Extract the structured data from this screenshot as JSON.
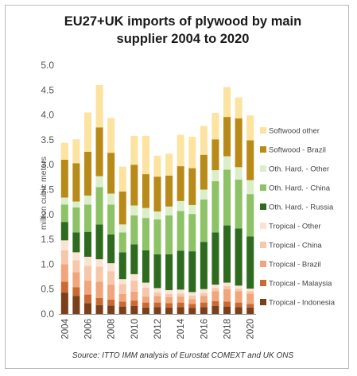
{
  "chart_data": {
    "type": "bar",
    "stacked": true,
    "title_line1": "EU27+UK imports of plywood by main",
    "title_line2": "supplier 2004 to 2020",
    "ylabel": "million cubic meters",
    "xlabel": "",
    "source": "Source: ITTO IMM analysis of Eurostat COMEXT and UK ONS",
    "ylim": [
      0,
      5.0
    ],
    "yticks": [
      "0.0",
      "0.5",
      "1.0",
      "1.5",
      "2.0",
      "2.5",
      "3.0",
      "3.5",
      "4.0",
      "4.5",
      "5.0"
    ],
    "categories": [
      "2004",
      "2005",
      "2006",
      "2007",
      "2008",
      "2009",
      "2010",
      "2011",
      "2012",
      "2013",
      "2014",
      "2015",
      "2016",
      "2017",
      "2018",
      "2019",
      "2020"
    ],
    "xtick_labels": [
      "2004",
      "",
      "2006",
      "",
      "2008",
      "",
      "2010",
      "",
      "2012",
      "",
      "2014",
      "",
      "2016",
      "",
      "2018",
      "",
      "2020"
    ],
    "legend_position": "right",
    "grid": false,
    "series": [
      {
        "name": "Tropical - Indonesia",
        "color": "#7b3f1a",
        "values": [
          0.43,
          0.36,
          0.22,
          0.18,
          0.17,
          0.15,
          0.16,
          0.13,
          0.14,
          0.13,
          0.14,
          0.12,
          0.14,
          0.16,
          0.15,
          0.14,
          0.13
        ]
      },
      {
        "name": "Tropical - Malaysia",
        "color": "#c96a35",
        "values": [
          0.22,
          0.18,
          0.17,
          0.14,
          0.12,
          0.1,
          0.11,
          0.1,
          0.09,
          0.09,
          0.09,
          0.08,
          0.09,
          0.1,
          0.1,
          0.09,
          0.07
        ]
      },
      {
        "name": "Tropical - Brazil",
        "color": "#f0a57a",
        "values": [
          0.35,
          0.3,
          0.28,
          0.33,
          0.3,
          0.15,
          0.18,
          0.12,
          0.13,
          0.12,
          0.12,
          0.1,
          0.13,
          0.2,
          0.25,
          0.23,
          0.21
        ]
      },
      {
        "name": "Tropical - China",
        "color": "#f6c7aa",
        "values": [
          0.28,
          0.24,
          0.3,
          0.3,
          0.27,
          0.2,
          0.22,
          0.18,
          0.07,
          0.06,
          0.06,
          0.07,
          0.06,
          0.06,
          0.06,
          0.05,
          0.05
        ]
      },
      {
        "name": "Tropical - Other",
        "color": "#fbe3d3",
        "values": [
          0.2,
          0.16,
          0.18,
          0.15,
          0.16,
          0.1,
          0.13,
          0.1,
          0.09,
          0.08,
          0.08,
          0.07,
          0.08,
          0.07,
          0.07,
          0.06,
          0.05
        ]
      },
      {
        "name": "Oth. Hard. - Russia",
        "color": "#2e6b1e",
        "values": [
          0.37,
          0.4,
          0.5,
          0.7,
          0.58,
          0.54,
          0.6,
          0.65,
          0.68,
          0.72,
          0.78,
          0.82,
          0.95,
          1.05,
          1.15,
          1.15,
          1.05
        ]
      },
      {
        "name": "Oth. Hard. - China",
        "color": "#8ec266",
        "values": [
          0.35,
          0.5,
          0.55,
          0.75,
          0.6,
          0.4,
          0.58,
          0.65,
          0.7,
          0.78,
          0.8,
          0.75,
          0.85,
          1.03,
          1.12,
          0.98,
          0.85
        ]
      },
      {
        "name": "Oth. Hard. - Other",
        "color": "#dbeec9",
        "values": [
          0.14,
          0.12,
          0.18,
          0.22,
          0.22,
          0.16,
          0.2,
          0.2,
          0.16,
          0.18,
          0.2,
          0.18,
          0.2,
          0.22,
          0.27,
          0.25,
          0.28
        ]
      },
      {
        "name": "Softwood - Brazil",
        "color": "#b88a18",
        "values": [
          0.76,
          0.77,
          0.88,
          0.98,
          0.82,
          0.66,
          0.82,
          0.68,
          0.7,
          0.62,
          0.7,
          0.74,
          0.7,
          0.62,
          0.79,
          0.98,
          0.8
        ]
      },
      {
        "name": "Softwood other",
        "color": "#fde3a0",
        "values": [
          0.34,
          0.48,
          0.79,
          0.85,
          0.7,
          0.5,
          0.58,
          0.77,
          0.42,
          0.44,
          0.63,
          0.63,
          0.58,
          0.53,
          0.6,
          0.42,
          0.5
        ]
      }
    ]
  }
}
